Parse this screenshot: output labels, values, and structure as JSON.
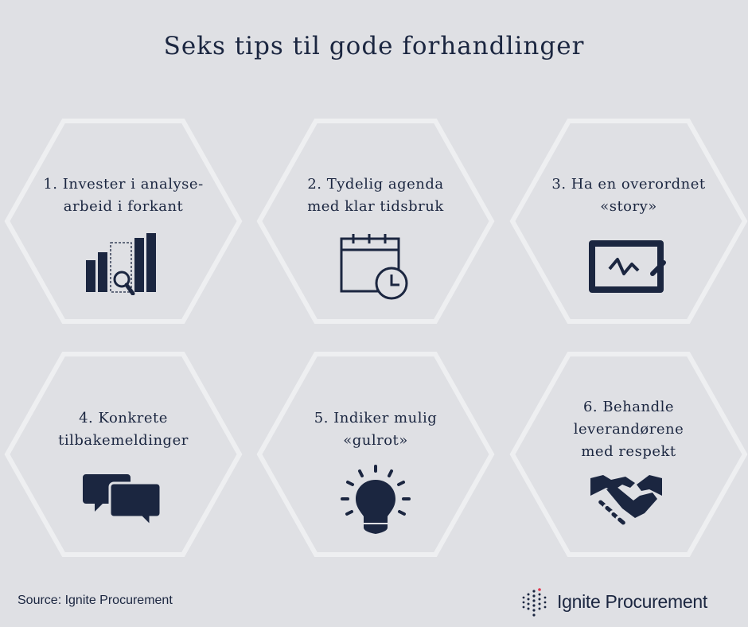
{
  "title": "Seks tips til gode forhandlinger",
  "tips": [
    {
      "line1": "1. Invester i analyse-",
      "line2": "arbeid i forkant",
      "icon": "bar-chart-magnifier-icon"
    },
    {
      "line1": "2. Tydelig agenda",
      "line2": "med klar tidsbruk",
      "icon": "calendar-clock-icon"
    },
    {
      "line1": "3. Ha en overordnet",
      "line2": "«story»",
      "icon": "presentation-board-icon"
    },
    {
      "line1": "4. Konkrete",
      "line2": "tilbakemeldinger",
      "icon": "chat-bubbles-icon"
    },
    {
      "line1": "5. Indiker mulig",
      "line2": "«gulrot»",
      "icon": "lightbulb-icon"
    },
    {
      "line1": "6. Behandle",
      "line2": "leverandørene",
      "line3": "med respekt",
      "icon": "handshake-icon"
    }
  ],
  "source": "Source: Ignite Procurement",
  "brand": {
    "name": "Ignite Procurement",
    "icon": "ignite-dots-logo-icon"
  },
  "colors": {
    "background": "#dfe0e4",
    "navy": "#1b2640",
    "hex_outline": "#eeeff1",
    "accent_red": "#e0384e"
  }
}
